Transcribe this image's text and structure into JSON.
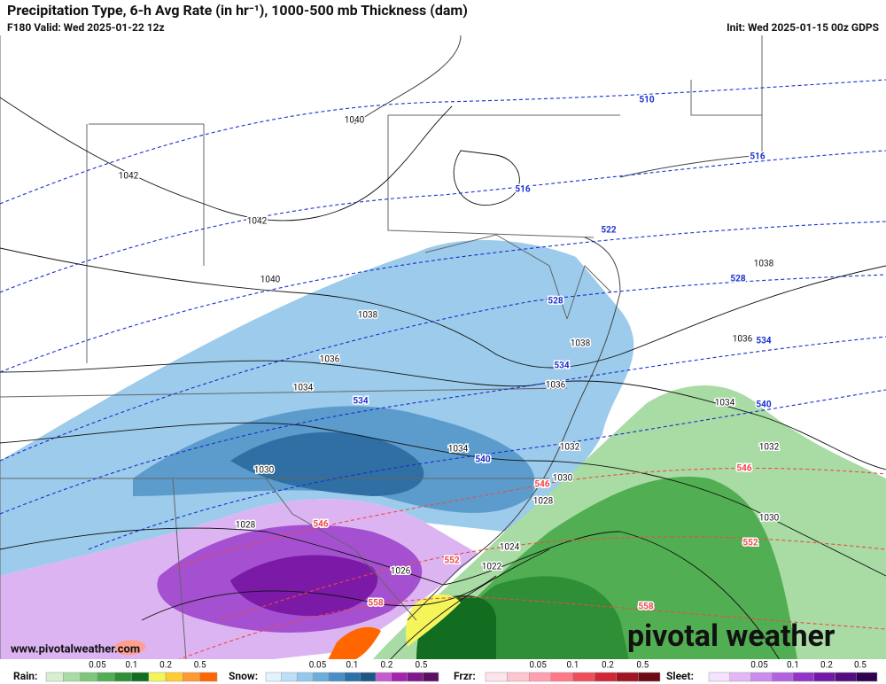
{
  "header": {
    "title": "Precipitation Type, 6-h Avg Rate (in hr⁻¹), 1000-500 mb Thickness (dam)",
    "valid": "F180 Valid: Wed 2025-01-22 12z",
    "init": "Init: Wed 2025-01-15 00z GDPS"
  },
  "isobars": {
    "color": "#111111",
    "labels": [
      "1040",
      "1042",
      "1042",
      "1040",
      "1038",
      "1036",
      "1034",
      "1034",
      "1030",
      "1028",
      "1026",
      "1024",
      "1022",
      "1038",
      "1038",
      "1036",
      "1036",
      "1034",
      "1032",
      "1032",
      "1030",
      "1030",
      "1028"
    ]
  },
  "thickness": [
    {
      "color": "#1a2fd0",
      "labels": [
        "510",
        "516",
        "516",
        "522",
        "528",
        "528",
        "534",
        "534",
        "534",
        "540",
        "540"
      ]
    },
    {
      "color": "#f04848",
      "labels": [
        "546",
        "546",
        "546",
        "552",
        "552",
        "558",
        "558"
      ]
    }
  ],
  "watermark": "www.pivotalweather.com",
  "logo": "pivotal weather",
  "legend": [
    {
      "name": "Rain:",
      "ticks": [
        0.05,
        0.1,
        0.2,
        0.5
      ],
      "colors": [
        "#d5f0d0",
        "#a8dca4",
        "#7cc77a",
        "#52ae52",
        "#2f8f36",
        "#136d20",
        "#f5f55a",
        "#ffcc33",
        "#ff9933",
        "#ff6600"
      ]
    },
    {
      "name": "Snow:",
      "ticks": [
        0.05,
        0.1,
        0.2,
        0.5
      ],
      "colors": [
        "#e3f2ff",
        "#bddff7",
        "#94c8ec",
        "#6baddd",
        "#478fc6",
        "#2c71a8",
        "#1d5585",
        "#c85ad0",
        "#a424ae",
        "#7e1690",
        "#5a0f62"
      ]
    },
    {
      "name": "Frzr:",
      "ticks": [
        0.05,
        0.1,
        0.2,
        0.5
      ],
      "colors": [
        "#ffe3ea",
        "#ffc4d0",
        "#ff9fb0",
        "#ff7888",
        "#f04c5a",
        "#d02636",
        "#a01424",
        "#6e0814"
      ]
    },
    {
      "name": "Sleet:",
      "ticks": [
        0.05,
        0.1,
        0.2,
        0.5
      ],
      "colors": [
        "#f5e2ff",
        "#e3b6f7",
        "#cc8cee",
        "#b263e0",
        "#9334c9",
        "#721aa8",
        "#520d80",
        "#300050"
      ]
    }
  ]
}
